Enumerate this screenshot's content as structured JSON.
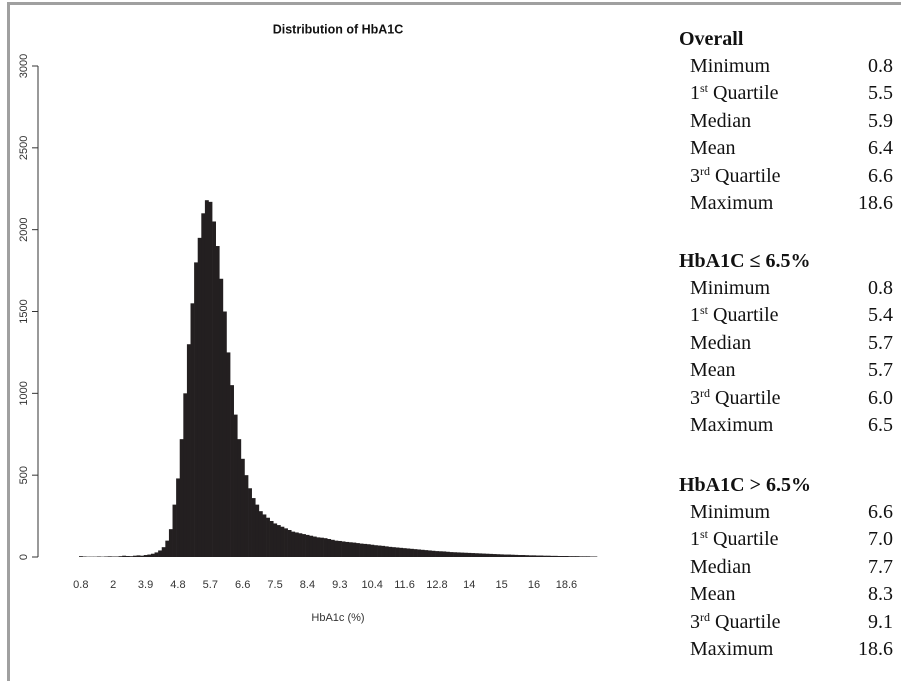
{
  "chart_data": {
    "type": "bar",
    "title": "Distribution of HbA1C",
    "x_label": "HbA1c (%)",
    "color": "#231f20",
    "categories": [
      "0.8",
      null,
      null,
      null,
      null,
      null,
      null,
      null,
      null,
      "2",
      null,
      null,
      null,
      null,
      null,
      null,
      null,
      null,
      "3.9",
      null,
      null,
      null,
      null,
      null,
      null,
      null,
      null,
      "4.8",
      null,
      null,
      null,
      null,
      null,
      null,
      null,
      null,
      "5.7",
      null,
      null,
      null,
      null,
      null,
      null,
      null,
      null,
      "6.6",
      null,
      null,
      null,
      null,
      null,
      null,
      null,
      null,
      "7.5",
      null,
      null,
      null,
      null,
      null,
      null,
      null,
      null,
      "8.4",
      null,
      null,
      null,
      null,
      null,
      null,
      null,
      null,
      "9.3",
      null,
      null,
      null,
      null,
      null,
      null,
      null,
      null,
      "10.4",
      null,
      null,
      null,
      null,
      null,
      null,
      null,
      null,
      "11.6",
      null,
      null,
      null,
      null,
      null,
      null,
      null,
      null,
      "12.8",
      null,
      null,
      null,
      null,
      null,
      null,
      null,
      null,
      "14",
      null,
      null,
      null,
      null,
      null,
      null,
      null,
      null,
      "15",
      null,
      null,
      null,
      null,
      null,
      null,
      null,
      null,
      "16",
      null,
      null,
      null,
      null,
      null,
      null,
      null,
      null,
      "18.6",
      null,
      null,
      null,
      null,
      null,
      null,
      null,
      null
    ],
    "values": [
      5,
      3,
      2,
      2,
      2,
      3,
      2,
      3,
      4,
      3,
      3,
      5,
      8,
      6,
      5,
      8,
      10,
      8,
      12,
      15,
      20,
      28,
      40,
      60,
      100,
      170,
      320,
      480,
      720,
      1000,
      1300,
      1550,
      1800,
      1950,
      2100,
      2180,
      2170,
      2050,
      1900,
      1700,
      1500,
      1250,
      1050,
      870,
      720,
      600,
      500,
      420,
      360,
      320,
      280,
      260,
      240,
      220,
      205,
      195,
      185,
      175,
      165,
      155,
      150,
      145,
      140,
      135,
      130,
      125,
      120,
      118,
      115,
      110,
      105,
      100,
      98,
      95,
      92,
      90,
      88,
      85,
      82,
      80,
      78,
      75,
      72,
      70,
      68,
      65,
      62,
      60,
      58,
      56,
      54,
      52,
      50,
      48,
      46,
      44,
      42,
      40,
      38,
      36,
      35,
      34,
      32,
      30,
      29,
      28,
      27,
      26,
      25,
      24,
      23,
      22,
      21,
      20,
      19,
      18,
      17,
      16,
      15,
      15,
      14,
      13,
      12,
      12,
      11,
      10,
      10,
      9,
      9,
      8,
      8,
      7,
      7,
      6,
      6,
      6,
      5,
      5,
      5,
      4,
      4,
      4,
      3,
      3
    ],
    "ylim": [
      0,
      3000
    ],
    "yticks": [
      0,
      500,
      1000,
      1500,
      2000,
      2500,
      3000
    ]
  },
  "stats": {
    "sections": [
      {
        "title": "Overall",
        "rows": [
          {
            "label": "Minimum",
            "value": "0.8"
          },
          {
            "ordinal": "1",
            "sup": "st",
            "label": " Quartile",
            "value": "5.5"
          },
          {
            "label": "Median",
            "value": "5.9"
          },
          {
            "label": "Mean",
            "value": "6.4"
          },
          {
            "ordinal": "3",
            "sup": "rd",
            "label": " Quartile",
            "value": "6.6"
          },
          {
            "label": "Maximum",
            "value": "18.6"
          }
        ]
      },
      {
        "title": "HbA1C ≤ 6.5%",
        "rows": [
          {
            "label": "Minimum",
            "value": "0.8"
          },
          {
            "ordinal": "1",
            "sup": "st",
            "label": " Quartile",
            "value": "5.4"
          },
          {
            "label": "Median",
            "value": "5.7"
          },
          {
            "label": "Mean",
            "value": "5.7"
          },
          {
            "ordinal": "3",
            "sup": "rd",
            "label": " Quartile",
            "value": "6.0"
          },
          {
            "label": "Maximum",
            "value": "6.5"
          }
        ]
      },
      {
        "title": "HbA1C > 6.5%",
        "rows": [
          {
            "label": "Minimum",
            "value": "6.6"
          },
          {
            "ordinal": "1",
            "sup": "st",
            "label": " Quartile",
            "value": "7.0"
          },
          {
            "label": "Median",
            "value": "7.7"
          },
          {
            "label": "Mean",
            "value": "8.3"
          },
          {
            "ordinal": "3",
            "sup": "rd",
            "label": " Quartile",
            "value": "9.1"
          },
          {
            "label": "Maximum",
            "value": "18.6"
          }
        ]
      }
    ]
  }
}
